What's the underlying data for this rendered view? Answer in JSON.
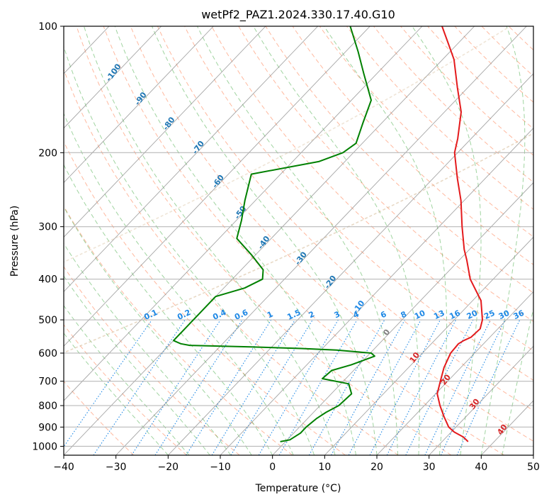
{
  "chart_data": {
    "type": "line",
    "title": "wetPf2_PAZ1.2024.330.17.40.G10",
    "xlabel": "Temperature (°C)",
    "ylabel": "Pressure (hPa)",
    "xlim": [
      -40,
      50
    ],
    "ylim": [
      1050,
      100
    ],
    "y_scale": "log",
    "x_ticks": [
      "−40",
      "−30",
      "−20",
      "−10",
      "0",
      "10",
      "20",
      "30",
      "40",
      "50"
    ],
    "y_ticks": [
      "100",
      "200",
      "300",
      "400",
      "500",
      "600",
      "700",
      "800",
      "900",
      "1000"
    ],
    "grid": true,
    "colors": {
      "temperature": "#e41a1c",
      "dewpoint": "#008000",
      "dry_adiabat": "#ff7f50",
      "moist_adiabat": "#2ca02c",
      "mixing_ratio": "#1e88e5",
      "isotherm": "#808080",
      "hydrolapse": "#d2b48c"
    },
    "isotherm_labels": [
      {
        "text": "-100",
        "T": -100
      },
      {
        "text": "-90",
        "T": -90
      },
      {
        "text": "-80",
        "T": -80
      },
      {
        "text": "-70",
        "T": -70
      },
      {
        "text": "-60",
        "T": -60
      },
      {
        "text": "-50",
        "T": -50
      },
      {
        "text": "-40",
        "T": -40
      },
      {
        "text": "-30",
        "T": -30
      },
      {
        "text": "-20",
        "T": -20
      },
      {
        "text": "-10",
        "T": -10
      },
      {
        "text": "0",
        "T": 0
      },
      {
        "text": "10",
        "T": 10
      },
      {
        "text": "20",
        "T": 20
      },
      {
        "text": "30",
        "T": 30
      },
      {
        "text": "40",
        "T": 40
      }
    ],
    "mixing_ratio_labels": [
      "0.1",
      "0.2",
      "0.4",
      "0.6",
      "1",
      "1.5",
      "2",
      "3",
      "4",
      "6",
      "8",
      "10",
      "13",
      "16",
      "20",
      "25",
      "30",
      "36"
    ],
    "series": [
      {
        "name": "temperature",
        "points": [
          {
            "p": 975,
            "t": 35.0
          },
          {
            "p": 950,
            "t": 33.2
          },
          {
            "p": 925,
            "t": 30.6
          },
          {
            "p": 900,
            "t": 28.6
          },
          {
            "p": 850,
            "t": 25.8
          },
          {
            "p": 800,
            "t": 23.0
          },
          {
            "p": 750,
            "t": 20.3
          },
          {
            "p": 700,
            "t": 18.6
          },
          {
            "p": 650,
            "t": 16.8
          },
          {
            "p": 600,
            "t": 15.4
          },
          {
            "p": 570,
            "t": 15.2
          },
          {
            "p": 560,
            "t": 15.6
          },
          {
            "p": 550,
            "t": 16.4
          },
          {
            "p": 525,
            "t": 16.6
          },
          {
            "p": 500,
            "t": 15.4
          },
          {
            "p": 450,
            "t": 11.6
          },
          {
            "p": 400,
            "t": 5.6
          },
          {
            "p": 360,
            "t": 1.4
          },
          {
            "p": 340,
            "t": -1.0
          },
          {
            "p": 300,
            "t": -5.6
          },
          {
            "p": 260,
            "t": -10.6
          },
          {
            "p": 230,
            "t": -15.4
          },
          {
            "p": 200,
            "t": -20.6
          },
          {
            "p": 185,
            "t": -22.6
          },
          {
            "p": 160,
            "t": -26.8
          },
          {
            "p": 140,
            "t": -32.0
          },
          {
            "p": 120,
            "t": -37.8
          },
          {
            "p": 110,
            "t": -41.8
          },
          {
            "p": 100,
            "t": -46.2
          }
        ]
      },
      {
        "name": "dewpoint",
        "points": [
          {
            "p": 975,
            "t": -1.0
          },
          {
            "p": 965,
            "t": 0.5
          },
          {
            "p": 930,
            "t": 1.3
          },
          {
            "p": 900,
            "t": 1.3
          },
          {
            "p": 860,
            "t": 1.7
          },
          {
            "p": 830,
            "t": 2.4
          },
          {
            "p": 800,
            "t": 3.6
          },
          {
            "p": 750,
            "t": 3.9
          },
          {
            "p": 710,
            "t": 1.5
          },
          {
            "p": 690,
            "t": -4.5
          },
          {
            "p": 660,
            "t": -4.2
          },
          {
            "p": 640,
            "t": -1.5
          },
          {
            "p": 610,
            "t": 1.4
          },
          {
            "p": 600,
            "t": 0.2
          },
          {
            "p": 590,
            "t": -7.0
          },
          {
            "p": 585,
            "t": -14.0
          },
          {
            "p": 580,
            "t": -24.0
          },
          {
            "p": 575,
            "t": -36.0
          },
          {
            "p": 570,
            "t": -38.0
          },
          {
            "p": 560,
            "t": -40.0
          },
          {
            "p": 440,
            "t": -40.0
          },
          {
            "p": 420,
            "t": -36.0
          },
          {
            "p": 400,
            "t": -34.2
          },
          {
            "p": 380,
            "t": -35.8
          },
          {
            "p": 350,
            "t": -40.8
          },
          {
            "p": 320,
            "t": -46.6
          },
          {
            "p": 290,
            "t": -49.0
          },
          {
            "p": 260,
            "t": -52.0
          },
          {
            "p": 225,
            "t": -55.6
          },
          {
            "p": 210,
            "t": -45.0
          },
          {
            "p": 200,
            "t": -42.0
          },
          {
            "p": 190,
            "t": -41.2
          },
          {
            "p": 170,
            "t": -43.6
          },
          {
            "p": 150,
            "t": -46.2
          },
          {
            "p": 130,
            "t": -52.4
          },
          {
            "p": 115,
            "t": -57.6
          },
          {
            "p": 100,
            "t": -63.8
          }
        ]
      }
    ]
  }
}
